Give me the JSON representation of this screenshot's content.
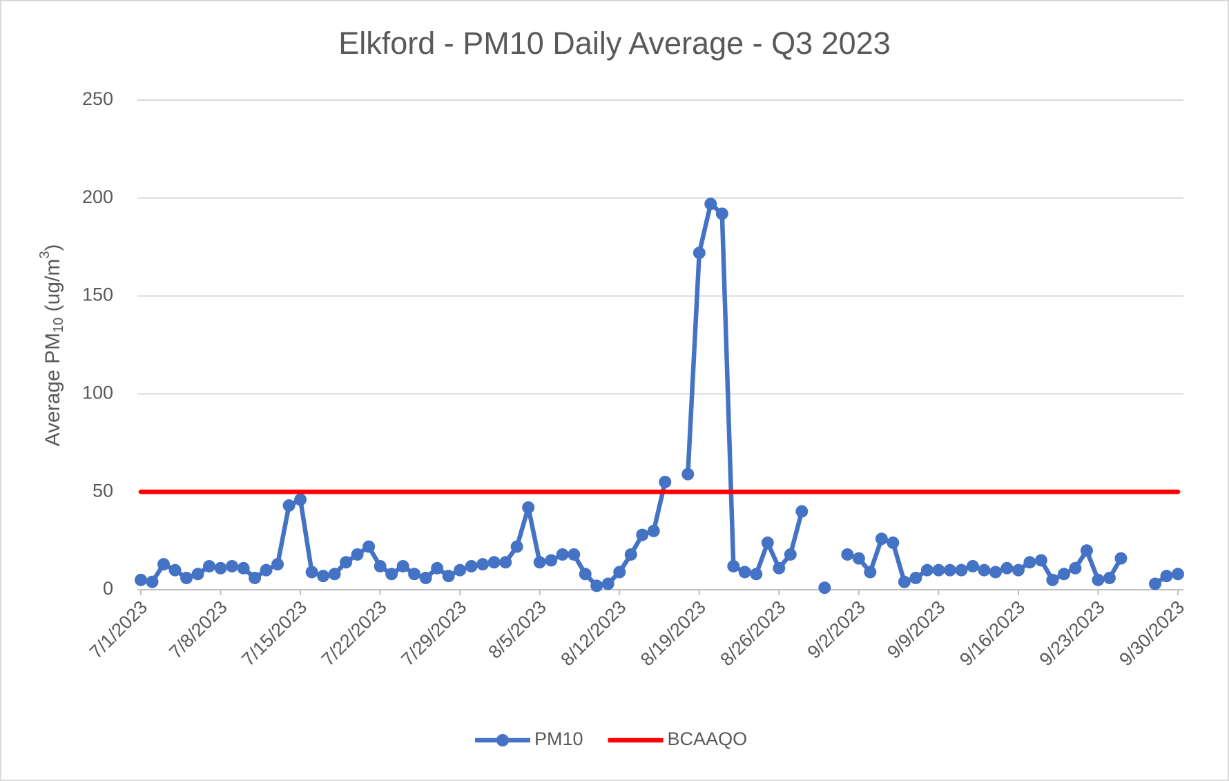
{
  "chart_data": {
    "type": "line",
    "title": "Elkford - PM10 Daily Average - Q3 2023",
    "y_label": [
      "Average PM",
      "10",
      " (ug/m",
      "3",
      ")"
    ],
    "categories": [
      "7/1/2023",
      null,
      null,
      null,
      null,
      null,
      null,
      "7/8/2023",
      null,
      null,
      null,
      null,
      null,
      null,
      "7/15/2023",
      null,
      null,
      null,
      null,
      null,
      null,
      "7/22/2023",
      null,
      null,
      null,
      null,
      null,
      null,
      "7/29/2023",
      null,
      null,
      null,
      null,
      null,
      null,
      "8/5/2023",
      null,
      null,
      null,
      null,
      null,
      null,
      "8/12/2023",
      null,
      null,
      null,
      null,
      null,
      null,
      "8/19/2023",
      null,
      null,
      null,
      null,
      null,
      null,
      "8/26/2023",
      null,
      null,
      null,
      null,
      null,
      null,
      "9/2/2023",
      null,
      null,
      null,
      null,
      null,
      null,
      "9/9/2023",
      null,
      null,
      null,
      null,
      null,
      null,
      "9/16/2023",
      null,
      null,
      null,
      null,
      null,
      null,
      "9/23/2023",
      null,
      null,
      null,
      null,
      null,
      null,
      "9/30/2023"
    ],
    "series": [
      {
        "name": "PM10",
        "color": "#4472c4",
        "marker": true,
        "values": [
          5,
          4,
          13,
          10,
          6,
          8,
          12,
          11,
          12,
          11,
          6,
          10,
          13,
          43,
          46,
          9,
          7,
          8,
          14,
          18,
          22,
          12,
          8,
          12,
          8,
          6,
          11,
          7,
          10,
          12,
          13,
          14,
          14,
          22,
          42,
          14,
          15,
          18,
          18,
          8,
          2,
          3,
          9,
          18,
          28,
          30,
          55,
          null,
          59,
          172,
          197,
          192,
          12,
          9,
          8,
          24,
          11,
          18,
          40,
          null,
          1,
          null,
          18,
          16,
          9,
          26,
          24,
          4,
          6,
          10,
          10,
          10,
          10,
          12,
          10,
          9,
          11,
          10,
          14,
          15,
          5,
          8,
          11,
          20,
          5,
          6,
          16,
          null,
          null,
          3,
          7,
          8
        ]
      },
      {
        "name": "BCAAQO",
        "color": "#ff0000",
        "marker": false,
        "values": [
          50,
          50,
          50,
          50,
          50,
          50,
          50,
          50,
          50,
          50,
          50,
          50,
          50,
          50,
          50,
          50,
          50,
          50,
          50,
          50,
          50,
          50,
          50,
          50,
          50,
          50,
          50,
          50,
          50,
          50,
          50,
          50,
          50,
          50,
          50,
          50,
          50,
          50,
          50,
          50,
          50,
          50,
          50,
          50,
          50,
          50,
          50,
          50,
          50,
          50,
          50,
          50,
          50,
          50,
          50,
          50,
          50,
          50,
          50,
          50,
          50,
          50,
          50,
          50,
          50,
          50,
          50,
          50,
          50,
          50,
          50,
          50,
          50,
          50,
          50,
          50,
          50,
          50,
          50,
          50,
          50,
          50,
          50,
          50,
          50,
          50,
          50,
          50,
          50,
          50,
          50,
          50
        ]
      }
    ],
    "ylim": [
      0,
      250
    ],
    "yticks": [
      0,
      50,
      100,
      150,
      200,
      250
    ],
    "grid": true,
    "legend": "bottom"
  }
}
